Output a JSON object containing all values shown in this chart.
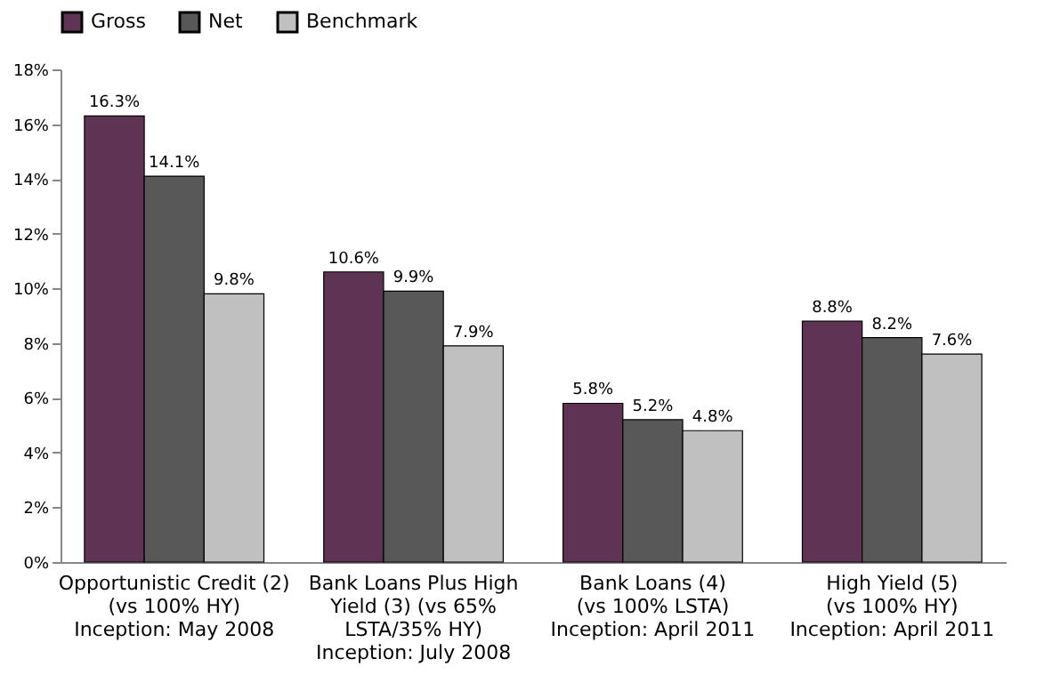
{
  "chart_data": {
    "type": "bar",
    "categories": [
      "Opportunistic Credit (2)\n(vs 100% HY)\nInception: May 2008",
      "Bank Loans Plus High\nYield (3) (vs 65%\nLSTA/35% HY)\nInception: July 2008",
      "Bank Loans (4)\n(vs 100% LSTA)\nInception: April 2011",
      "High Yield (5)\n(vs 100% HY)\nInception: April 2011"
    ],
    "series": [
      {
        "name": "Gross",
        "color": "#5e3354",
        "values": [
          16.3,
          10.6,
          5.8,
          8.8
        ],
        "value_labels": [
          "16.3%",
          "10.6%",
          "5.8%",
          "8.8%"
        ]
      },
      {
        "name": "Net",
        "color": "#585858",
        "values": [
          14.1,
          9.9,
          5.2,
          8.2
        ],
        "value_labels": [
          "14.1%",
          "9.9%",
          "5.2%",
          "8.2%"
        ]
      },
      {
        "name": "Benchmark",
        "color": "#c0c0c0",
        "values": [
          9.8,
          7.9,
          4.8,
          7.6
        ],
        "value_labels": [
          "9.8%",
          "7.9%",
          "4.8%",
          "7.6%"
        ]
      }
    ],
    "ylim": [
      0,
      18
    ],
    "yticks": [
      {
        "value": 0,
        "label": "0%"
      },
      {
        "value": 2,
        "label": "2%"
      },
      {
        "value": 4,
        "label": "4%"
      },
      {
        "value": 6,
        "label": "6%"
      },
      {
        "value": 8,
        "label": "8%"
      },
      {
        "value": 10,
        "label": "10%"
      },
      {
        "value": 12,
        "label": "12%"
      },
      {
        "value": 14,
        "label": "14%"
      },
      {
        "value": 16,
        "label": "16%"
      },
      {
        "value": 18,
        "label": "18%"
      }
    ],
    "grid": false,
    "legend": "top"
  }
}
